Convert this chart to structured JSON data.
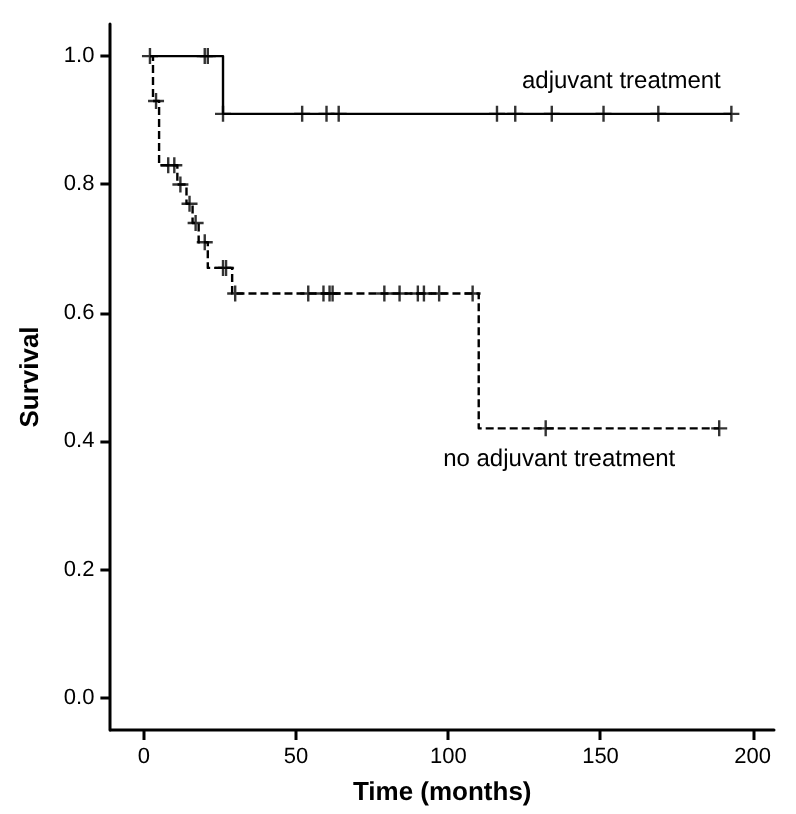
{
  "chart_data": {
    "type": "step",
    "xlabel": "Time (months)",
    "ylabel": "Survival",
    "xlim": [
      -11,
      207
    ],
    "xticks": [
      0,
      50,
      100,
      150,
      200
    ],
    "ylim": [
      -0.05,
      1.05
    ],
    "yticks": [
      {
        "value": 0,
        "label": "0.0"
      },
      {
        "value": 0.2,
        "label": "0.2"
      },
      {
        "value": 0.4,
        "label": "0.4"
      },
      {
        "value": 0.6,
        "label": "0.6"
      },
      {
        "value": 0.8,
        "label": "0.8"
      },
      {
        "value": 1,
        "label": "1.0"
      }
    ],
    "grid": false,
    "series": [
      {
        "name": "adjuvant treatment",
        "color": "#000000",
        "line_style": "solid",
        "x": [
          2,
          26,
          193
        ],
        "values": [
          1.0,
          0.91,
          0.91
        ]
      },
      {
        "name": "no adjuvant treatment",
        "color": "#000000",
        "line_style": "dashed",
        "x": [
          2,
          3,
          5,
          11,
          14,
          16,
          18,
          21,
          29,
          110,
          189
        ],
        "values": [
          1.0,
          0.93,
          0.83,
          0.8,
          0.77,
          0.74,
          0.71,
          0.67,
          0.63,
          0.42,
          0.42
        ]
      },
      {
        "type": "scatter",
        "color": "#000000",
        "marker": "cross",
        "x": [
          2,
          20,
          21,
          26,
          52,
          60,
          64,
          116,
          122,
          134,
          151,
          169,
          193
        ],
        "values": [
          1,
          1,
          1,
          0.91,
          0.91,
          0.91,
          0.91,
          0.91,
          0.91,
          0.91,
          0.91,
          0.91,
          0.91
        ]
      },
      {
        "type": "scatter",
        "color": "#000000",
        "marker": "cross",
        "x": [
          4,
          8,
          10,
          12,
          15,
          17,
          20,
          26,
          27,
          30,
          54,
          59,
          61,
          62,
          79,
          84,
          90,
          92,
          97,
          108,
          132,
          189
        ],
        "values": [
          0.93,
          0.83,
          0.83,
          0.8,
          0.77,
          0.74,
          0.71,
          0.67,
          0.67,
          0.63,
          0.63,
          0.63,
          0.63,
          0.63,
          0.63,
          0.63,
          0.63,
          0.63,
          0.63,
          0.63,
          0.42,
          0.42
        ]
      }
    ]
  }
}
